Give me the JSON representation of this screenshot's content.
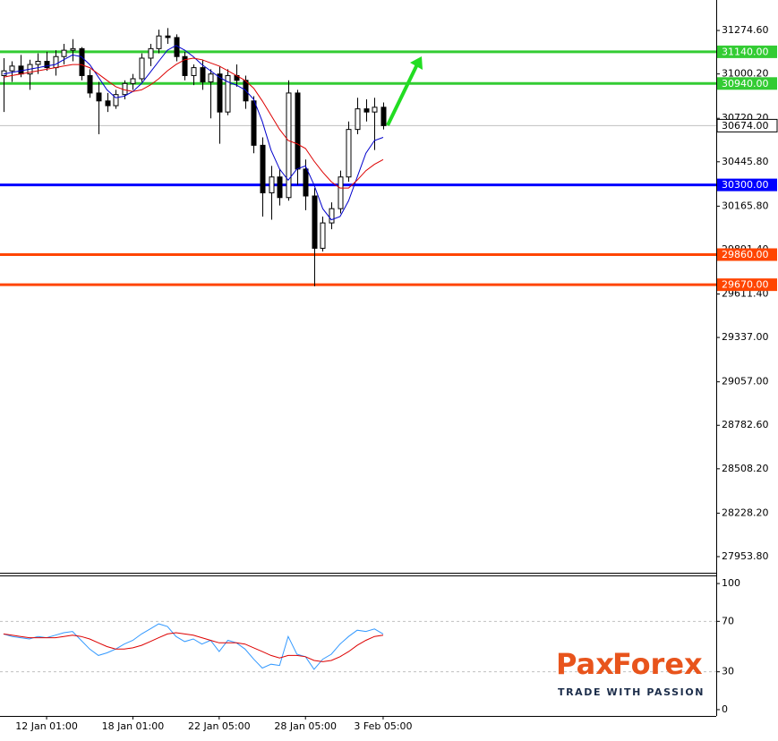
{
  "chart_data": {
    "type": "candlestick",
    "xlim": [
      -0.4,
      82.6
    ],
    "xticks": [
      {
        "value": 5,
        "label": "12 Jan 01:00"
      },
      {
        "value": 15,
        "label": "18 Jan 01:00"
      },
      {
        "value": 25,
        "label": "22 Jan 05:00"
      },
      {
        "value": 35,
        "label": "28 Jan 05:00"
      },
      {
        "value": 44,
        "label": "3 Feb 05:00"
      }
    ],
    "ylim": [
      27852,
      31467
    ],
    "yticks": [
      {
        "value": 31274.6,
        "label": "31274.60"
      },
      {
        "value": 31000.2,
        "label": "31000.20"
      },
      {
        "value": 30720.2,
        "label": "30720.20"
      },
      {
        "value": 30445.8,
        "label": "30445.80"
      },
      {
        "value": 30165.8,
        "label": "30165.80"
      },
      {
        "value": 29891.4,
        "label": "29891.40"
      },
      {
        "value": 29611.4,
        "label": "29611.40"
      },
      {
        "value": 29337,
        "label": "29337.00"
      },
      {
        "value": 29057,
        "label": "29057.00"
      },
      {
        "value": 28782.6,
        "label": "28782.60"
      },
      {
        "value": 28508.2,
        "label": "28508.20"
      },
      {
        "value": 28228.2,
        "label": "28228.20"
      },
      {
        "value": 27953.8,
        "label": "27953.80"
      }
    ],
    "up_color": "#ffffff",
    "down_color": "#000000",
    "open": [
      30990,
      31020,
      31050,
      31000,
      31060,
      31080,
      31040,
      31110,
      31150,
      31160,
      30990,
      30880,
      30830,
      30800,
      30870,
      30940,
      30970,
      31100,
      31160,
      31240,
      31230,
      31110,
      30990,
      31040,
      30950,
      31000,
      30760,
      30990,
      30960,
      30830,
      30550,
      30250,
      30350,
      30220,
      30880,
      30400,
      30230,
      29900,
      30060,
      30150,
      30350,
      30650,
      30780,
      30760,
      30790
    ],
    "high": [
      31100,
      31080,
      31120,
      31090,
      31130,
      31140,
      31150,
      31190,
      31220,
      31170,
      31030,
      30950,
      30880,
      30900,
      30960,
      31000,
      31130,
      31190,
      31280,
      31290,
      31250,
      31140,
      31060,
      31090,
      31030,
      31050,
      31030,
      31060,
      30990,
      30860,
      30600,
      30420,
      30400,
      30960,
      30900,
      30460,
      30280,
      30100,
      30190,
      30390,
      30700,
      30850,
      30840,
      30850,
      30820
    ],
    "low": [
      30760,
      30950,
      30980,
      30900,
      31000,
      31020,
      30990,
      31060,
      31080,
      30960,
      30850,
      30620,
      30760,
      30780,
      30840,
      30900,
      30950,
      31050,
      31130,
      31190,
      31080,
      30960,
      30930,
      30900,
      30720,
      30560,
      30740,
      30920,
      30780,
      30500,
      30100,
      30080,
      30170,
      30200,
      30300,
      30140,
      29660,
      29880,
      30020,
      30120,
      30320,
      30620,
      30700,
      30520,
      30650
    ],
    "close": [
      31020,
      31050,
      31000,
      31060,
      31080,
      31040,
      31110,
      31150,
      31160,
      30990,
      30880,
      30830,
      30800,
      30870,
      30940,
      30970,
      31100,
      31160,
      31240,
      31230,
      31110,
      30990,
      31040,
      30950,
      31000,
      30760,
      30990,
      30960,
      30830,
      30550,
      30250,
      30350,
      30220,
      30880,
      30400,
      30230,
      29900,
      30060,
      30150,
      30350,
      30650,
      30780,
      30760,
      30790,
      30674
    ],
    "series": [
      {
        "color": "#0000cc",
        "values": [
          31000,
          31010,
          31020,
          31030,
          31040,
          31050,
          31060,
          31090,
          31120,
          31110,
          31060,
          30980,
          30900,
          30850,
          30860,
          30890,
          30940,
          31010,
          31080,
          31150,
          31180,
          31150,
          31110,
          31060,
          31020,
          30980,
          30950,
          30930,
          30900,
          30840,
          30700,
          30520,
          30400,
          30330,
          30400,
          30420,
          30300,
          30150,
          30080,
          30100,
          30200,
          30350,
          30500,
          30580,
          30600
        ]
      },
      {
        "color": "#dd0000",
        "values": [
          30980,
          30990,
          31000,
          31010,
          31020,
          31030,
          31040,
          31050,
          31060,
          31060,
          31040,
          31000,
          30960,
          30920,
          30900,
          30890,
          30900,
          30930,
          30970,
          31020,
          31060,
          31090,
          31100,
          31090,
          31070,
          31050,
          31020,
          30990,
          30960,
          30910,
          30830,
          30740,
          30650,
          30580,
          30560,
          30530,
          30450,
          30380,
          30320,
          30280,
          30280,
          30330,
          30390,
          30430,
          30460
        ]
      }
    ],
    "levels": [
      {
        "value": 31140,
        "label": "31140.00",
        "color": "#33cc33"
      },
      {
        "value": 30940,
        "label": "30940.00",
        "color": "#33cc33"
      },
      {
        "value": 30674,
        "label": "30674.00",
        "color": "#c0c0c0"
      },
      {
        "value": 30300,
        "label": "30300.00",
        "color": "#0000ff"
      },
      {
        "value": 29860,
        "label": "29860.00",
        "color": "#ff4500"
      },
      {
        "value": 29670,
        "label": "29670.00",
        "color": "#ff4500"
      }
    ],
    "indicator": {
      "type": "line",
      "ylim": [
        -5,
        105
      ],
      "yticks": [
        100,
        70,
        30,
        0
      ],
      "grid": "dashed",
      "series": [
        {
          "color": "#3399ff",
          "values": [
            60,
            58,
            57,
            56,
            58,
            57,
            59,
            61,
            62,
            55,
            48,
            43,
            45,
            48,
            52,
            55,
            60,
            64,
            68,
            66,
            58,
            54,
            56,
            52,
            55,
            46,
            55,
            53,
            48,
            40,
            33,
            36,
            35,
            58,
            44,
            42,
            32,
            40,
            44,
            52,
            58,
            63,
            62,
            64,
            60
          ]
        },
        {
          "color": "#dd0000",
          "values": [
            60,
            59,
            58,
            57,
            57,
            57,
            57,
            58,
            59,
            58,
            56,
            53,
            50,
            48,
            48,
            49,
            51,
            54,
            57,
            60,
            61,
            60,
            59,
            57,
            55,
            53,
            53,
            53,
            52,
            49,
            46,
            43,
            41,
            43,
            43,
            42,
            39,
            38,
            39,
            42,
            46,
            51,
            55,
            58,
            59
          ]
        }
      ]
    },
    "watermark": {
      "brand_left": "Pax",
      "brand_right": "Forex",
      "tagline": "TRADE WITH PASSION"
    }
  }
}
